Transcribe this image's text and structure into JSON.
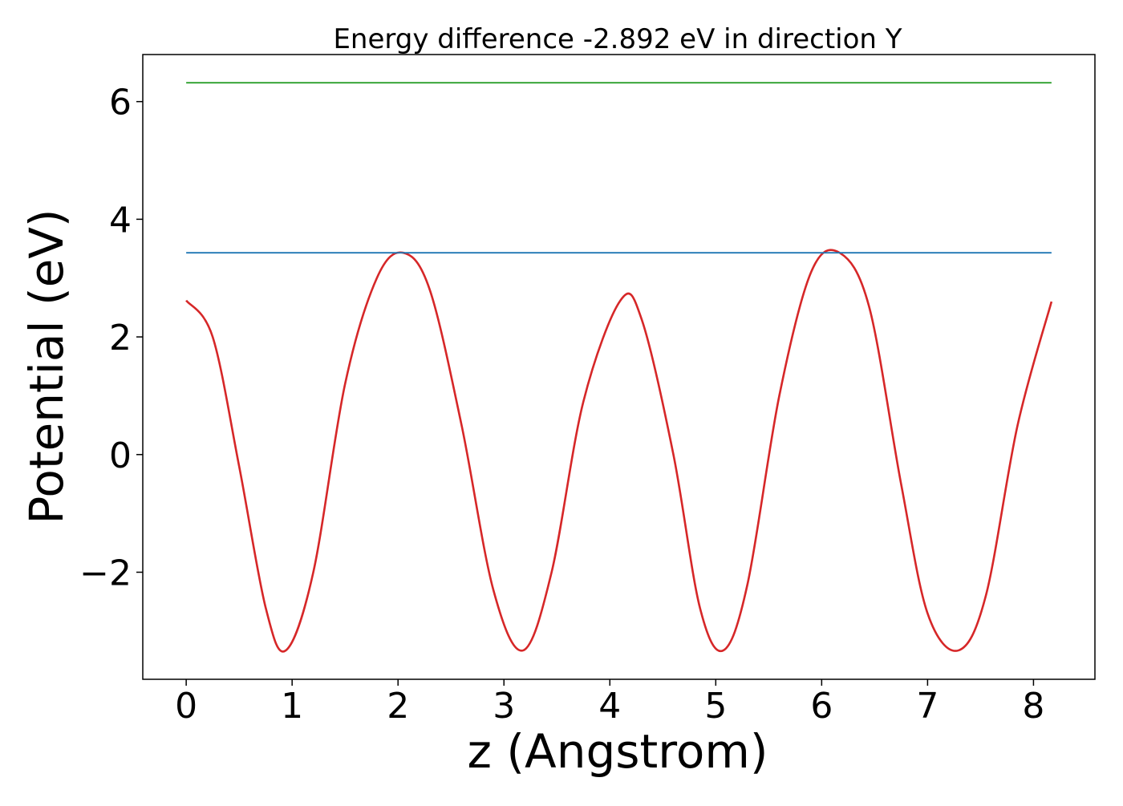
{
  "chart_data": {
    "type": "line",
    "title": "Energy difference -2.892 eV in direction Y",
    "xlabel": "z (Angstrom)",
    "ylabel": "Potential (eV)",
    "xlim": [
      -0.41,
      8.58
    ],
    "ylim": [
      -3.82,
      6.8
    ],
    "xticks": [
      0,
      1,
      2,
      3,
      4,
      5,
      6,
      7,
      8
    ],
    "xtick_labels": [
      "0",
      "1",
      "2",
      "3",
      "4",
      "5",
      "6",
      "7",
      "8"
    ],
    "yticks": [
      -2,
      0,
      2,
      4,
      6
    ],
    "ytick_labels": [
      "−2",
      "0",
      "2",
      "4",
      "6"
    ],
    "grid": false,
    "legend": "none",
    "series": [
      {
        "color": "#d62728",
        "x": [
          0,
          0.25,
          0.5,
          0.75,
          0.94,
          1.2,
          1.5,
          1.8,
          2.05,
          2.3,
          2.6,
          2.9,
          3.18,
          3.45,
          3.75,
          4.1,
          4.3,
          4.6,
          4.85,
          5.07,
          5.3,
          5.6,
          5.9,
          6.17,
          6.45,
          6.75,
          7.0,
          7.29,
          7.55,
          7.85,
          8.17
        ],
        "y": [
          2.62,
          2.0,
          -0.2,
          -2.6,
          -3.33,
          -2.0,
          1.2,
          3.0,
          3.43,
          2.8,
          0.5,
          -2.3,
          -3.33,
          -2.0,
          0.9,
          2.62,
          2.3,
          0.0,
          -2.6,
          -3.33,
          -2.2,
          1.0,
          3.1,
          3.43,
          2.5,
          -0.5,
          -2.7,
          -3.33,
          -2.4,
          0.5,
          2.6
        ]
      },
      {
        "color": "#1f77b4",
        "x": [
          0,
          8.17
        ],
        "y": [
          3.43,
          3.43
        ]
      },
      {
        "color": "#2ca02c",
        "x": [
          0,
          8.17
        ],
        "y": [
          6.32,
          6.32
        ]
      }
    ]
  }
}
